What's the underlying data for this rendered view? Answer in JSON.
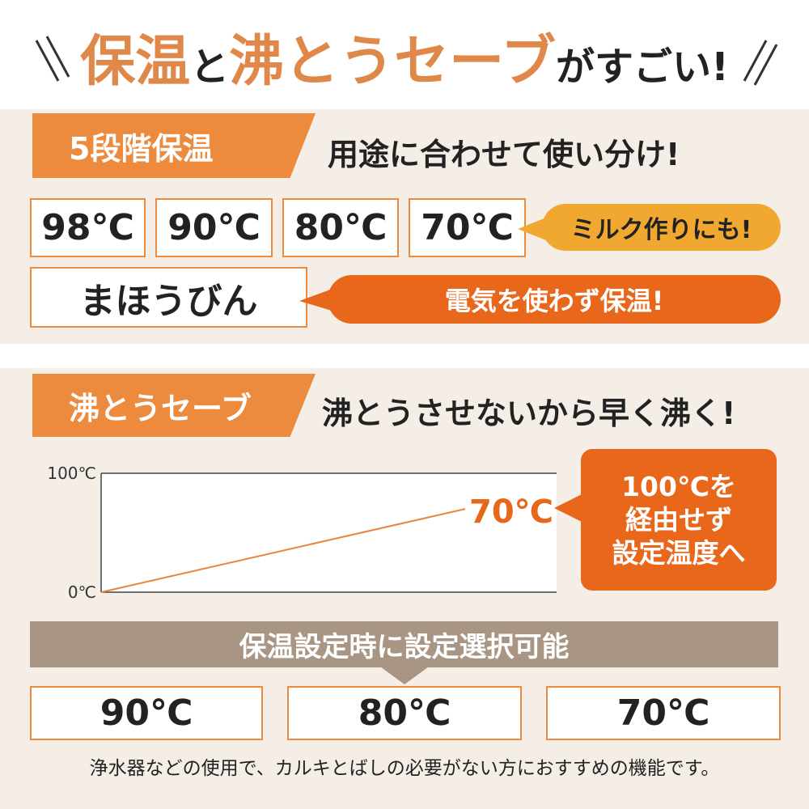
{
  "title": [
    "保温",
    "と",
    "沸とうセーブ",
    "がすごい!"
  ],
  "section1": {
    "tab": "5段階保温",
    "heading": "用途に合わせて使い分け!",
    "temps": [
      "98℃",
      "90℃",
      "80℃",
      "70℃"
    ],
    "milk_callout": "ミルク作りにも!",
    "thermos": "まほうびん",
    "thermos_callout": "電気を使わず保温!"
  },
  "section2": {
    "tab": "沸とうセーブ",
    "heading": "沸とうさせないから早く沸く!",
    "boil_chart": {
      "type": "line",
      "ylim": [
        0,
        100
      ],
      "yticks": [
        {
          "value": 0,
          "label": "0℃"
        },
        {
          "value": 100,
          "label": "100℃"
        }
      ],
      "values": [
        0,
        70
      ],
      "value_labels": [
        null,
        "70℃"
      ],
      "color": "#e8843c"
    },
    "callout": [
      "100℃を",
      "経由せず",
      "設定温度へ"
    ],
    "bar": "保温設定時に設定選択可能",
    "temps": [
      "90℃",
      "80℃",
      "70℃"
    ],
    "footnote": "浄水器などの使用で、カルキとばしの必要がない方におすすめの機能です。"
  }
}
